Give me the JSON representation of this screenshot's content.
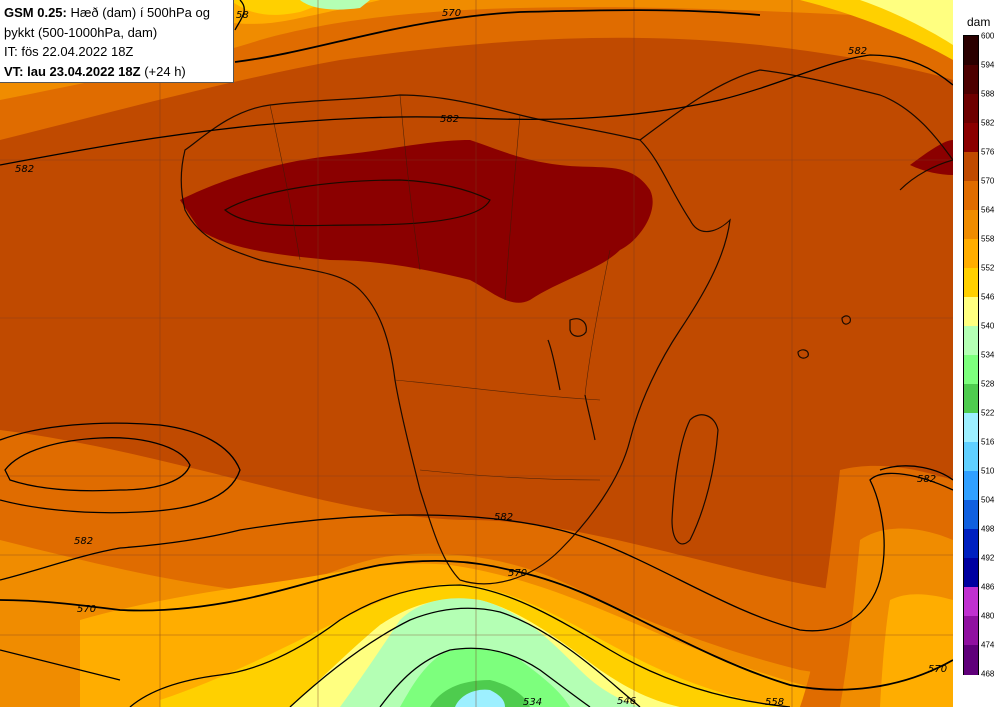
{
  "info": {
    "model": "GSM 0.25:",
    "desc_line1": " Hæð (dam) í 500hPa og",
    "desc_line2": "þykkt (500-1000hPa, dam)",
    "it_line": "IT: fös 22.04.2022 18Z",
    "vt_label": "VT: lau 23.04.2022 18Z",
    "vt_offset": " (+24 h)"
  },
  "legend": {
    "unit": "dam",
    "levels": [
      600,
      594,
      588,
      582,
      576,
      570,
      564,
      558,
      552,
      546,
      540,
      534,
      528,
      522,
      516,
      510,
      504,
      498,
      492,
      486,
      480,
      474,
      468
    ],
    "colors": [
      "#2a0000",
      "#4d0000",
      "#6e0000",
      "#8b0000",
      "#c04a00",
      "#e06c00",
      "#f08c00",
      "#ffad00",
      "#ffd000",
      "#ffff80",
      "#b4ffb4",
      "#7dff7d",
      "#4ecc4e",
      "#9df0ff",
      "#60d0ff",
      "#30a0ff",
      "#1060e0",
      "#0020c0",
      "#0000a0",
      "#c030d0",
      "#9010a0",
      "#60007a",
      "#3c0050"
    ]
  },
  "contour_labels": [
    "582",
    "582",
    "582",
    "582",
    "582",
    "582",
    "570",
    "570",
    "570",
    "570",
    "58",
    "534",
    "546",
    "558"
  ]
}
